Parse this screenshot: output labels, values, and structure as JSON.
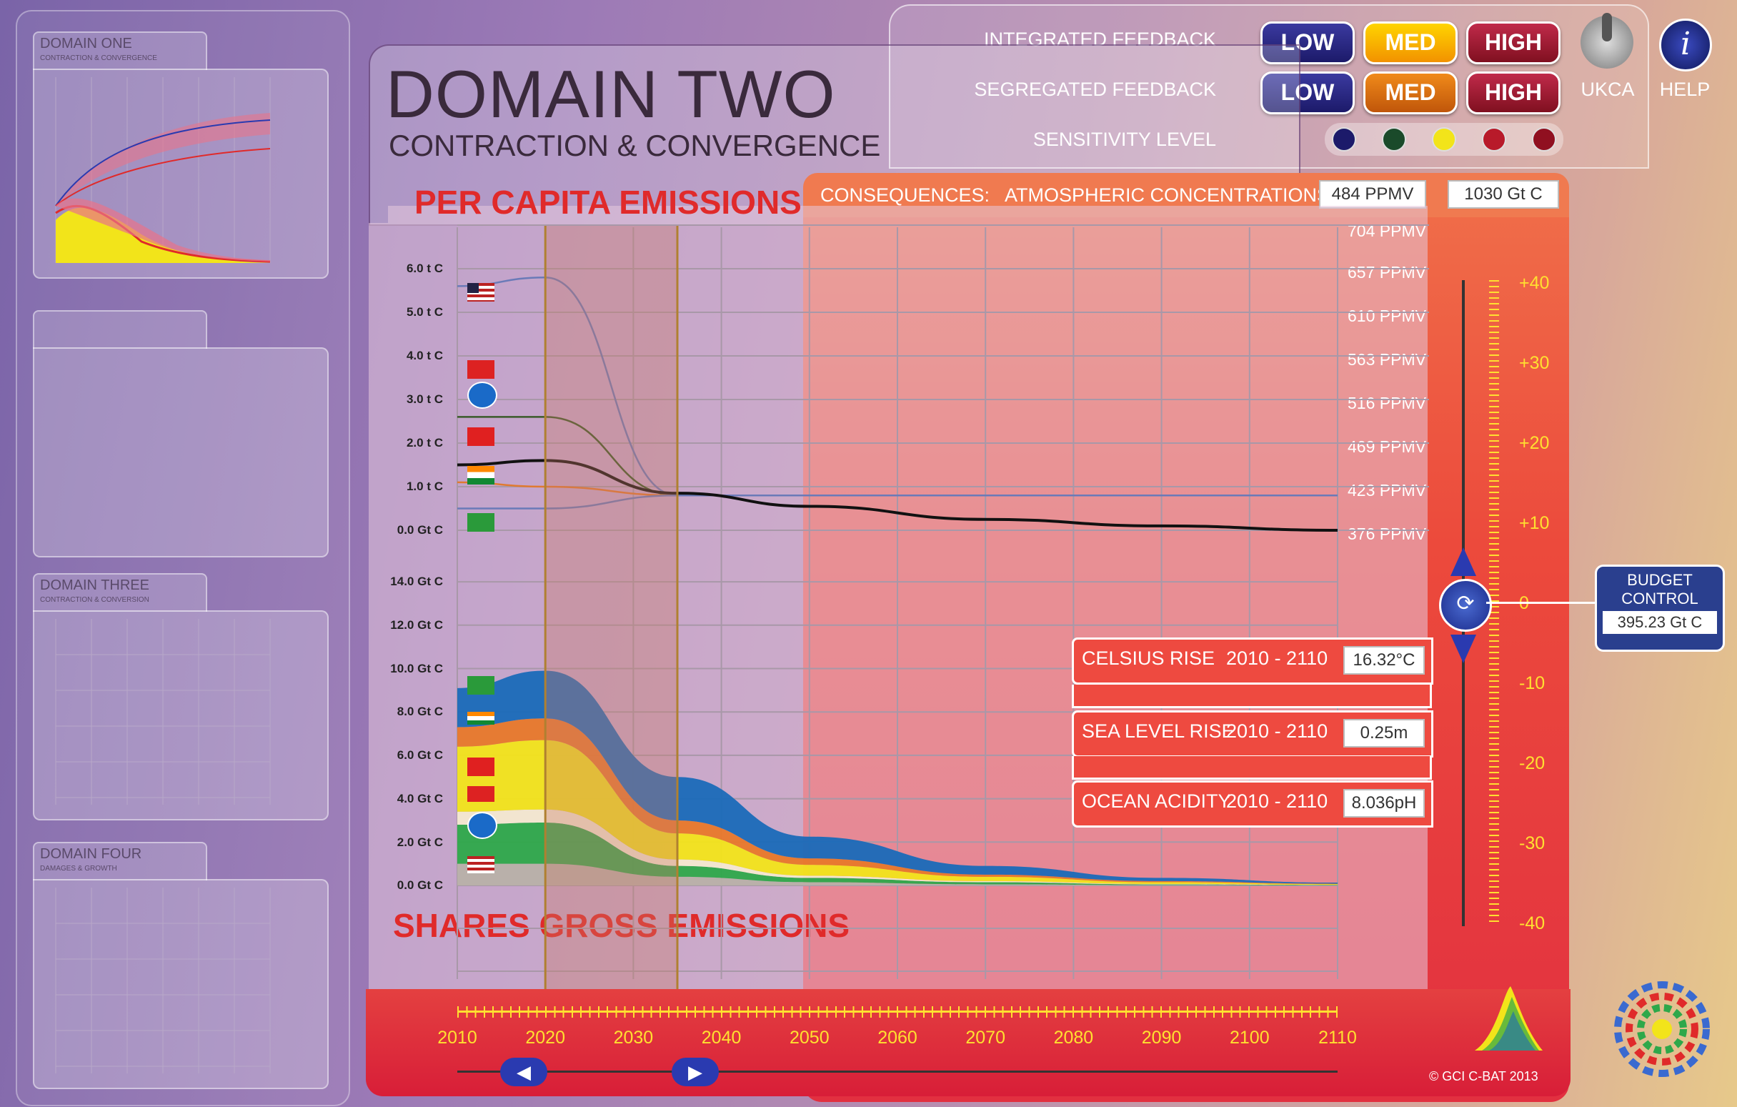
{
  "sidebar": {
    "domains": [
      {
        "title": "DOMAIN ONE",
        "subtitle": "CONTRACTION & CONVERGENCE"
      },
      {
        "title": "",
        "subtitle": ""
      },
      {
        "title": "DOMAIN THREE",
        "subtitle": "CONTRACTION & CONVERSION"
      },
      {
        "title": "DOMAIN FOUR",
        "subtitle": "DAMAGES & GROWTH"
      }
    ]
  },
  "header": {
    "title": "DOMAIN TWO",
    "subtitle": "CONTRACTION & CONVERGENCE"
  },
  "controls": {
    "integrated_label": "INTEGRATED FEEDBACK",
    "segregated_label": "SEGREGATED FEEDBACK",
    "sensitivity_label": "SENSITIVITY LEVEL",
    "low": "LOW",
    "med": "MED",
    "high": "HIGH",
    "ukca": "UKCA",
    "help": "HELP"
  },
  "consequences": {
    "label": "CONSEQUENCES:",
    "atmos_label": "ATMOSPHERIC CONCENTRATIONS",
    "ppmv_value": "484 PPMV",
    "gtc_value": "1030 Gt C"
  },
  "labels": {
    "per_capita": "PER CAPITA EMISSIONS",
    "shares_gross": "SHARES GROSS EMISSIONS"
  },
  "stats": {
    "celsius_label": "CELSIUS RISE",
    "celsius_range": "2010 - 2110",
    "celsius_value": "16.32°C",
    "sea_label": "SEA LEVEL RISE",
    "sea_range": "2010 - 2110",
    "sea_value": "0.25m",
    "ocean_label": "OCEAN ACIDITY",
    "ocean_range": "2010 - 2110",
    "ocean_value": "8.036pH"
  },
  "budget": {
    "title_line1": "BUDGET",
    "title_line2": "CONTROL",
    "value": "395.23 Gt C"
  },
  "copyright": "© GCI C-BAT 2013",
  "colors": {
    "accent_red": "#e02a2a",
    "panel_red": "#e8403c",
    "low_blue": "#2a2a8a",
    "med_yellow": "#ffd400",
    "high_red": "#a81a30"
  },
  "chart_data": [
    {
      "type": "line",
      "title": "PER CAPITA EMISSIONS",
      "ylabel": "",
      "y_ticks": [
        "0.0 Gt C",
        "1.0 t C",
        "2.0 t C",
        "3.0 t C",
        "4.0 t C",
        "5.0 t C",
        "6.0 t C"
      ],
      "ylim": [
        0,
        7
      ],
      "right_ticks": [
        "376 PPMV",
        "423 PPMV",
        "469 PPMV",
        "516 PPMV",
        "563 PPMV",
        "610 PPMV",
        "657 PPMV",
        "704 PPMV"
      ],
      "x": [
        2010,
        2020,
        2035,
        2050,
        2070,
        2090,
        2110
      ],
      "series": [
        {
          "name": "",
          "color": "#6a7ab8",
          "values": [
            5.6,
            5.8,
            0.8,
            0.8,
            0.8,
            0.8,
            0.8
          ]
        },
        {
          "name": "",
          "color": "#3a5a2a",
          "values": [
            2.6,
            2.6,
            0.8,
            0.8,
            0.8,
            0.8,
            0.8
          ]
        },
        {
          "name": "",
          "color": "#e07a30",
          "values": [
            1.1,
            1.0,
            0.8,
            0.8,
            0.8,
            0.8,
            0.8
          ]
        },
        {
          "name": "",
          "color": "#6a7ab8",
          "values": [
            0.5,
            0.5,
            0.8,
            0.8,
            0.8,
            0.8,
            0.8
          ]
        },
        {
          "name": "",
          "color": "#111111",
          "values": [
            1.5,
            1.6,
            0.85,
            0.55,
            0.25,
            0.1,
            0.0
          ]
        }
      ]
    },
    {
      "type": "area",
      "title": "SHARES GROSS EMISSIONS",
      "y_ticks": [
        "0.0 Gt C",
        "2.0 Gt C",
        "4.0 Gt C",
        "6.0 Gt C",
        "8.0 Gt C",
        "10.0 Gt C",
        "12.0 Gt C",
        "14.0 Gt C"
      ],
      "ylim": [
        0,
        14
      ],
      "x": [
        2010,
        2020,
        2035,
        2050,
        2070,
        2090,
        2110
      ],
      "series": [
        {
          "name": "",
          "color": "#b8b0a8",
          "values": [
            1.0,
            1.0,
            0.4,
            0.15,
            0.05,
            0.02,
            0.0
          ]
        },
        {
          "name": "",
          "color": "#2ea84a",
          "values": [
            1.8,
            1.9,
            0.5,
            0.2,
            0.1,
            0.03,
            0.02
          ]
        },
        {
          "name": "",
          "color": "#f4e8d0",
          "values": [
            0.6,
            0.6,
            0.3,
            0.1,
            0.05,
            0.02,
            0.01
          ]
        },
        {
          "name": "",
          "color": "#f2e41a",
          "values": [
            3.0,
            3.2,
            1.2,
            0.5,
            0.2,
            0.08,
            0.03
          ]
        },
        {
          "name": "",
          "color": "#e8782a",
          "values": [
            0.9,
            1.0,
            0.6,
            0.3,
            0.1,
            0.05,
            0.02
          ]
        },
        {
          "name": "",
          "color": "#1a6ab8",
          "values": [
            1.8,
            2.2,
            2.0,
            1.0,
            0.4,
            0.15,
            0.05
          ]
        }
      ]
    }
  ],
  "timeline": {
    "years": [
      "2010",
      "2020",
      "2030",
      "2040",
      "2050",
      "2060",
      "2070",
      "2080",
      "2090",
      "2100",
      "2110"
    ]
  },
  "right_scale": {
    "ticks": [
      "+40",
      "+30",
      "+20",
      "+10",
      "0",
      "-10",
      "-20",
      "-30",
      "-40"
    ]
  }
}
